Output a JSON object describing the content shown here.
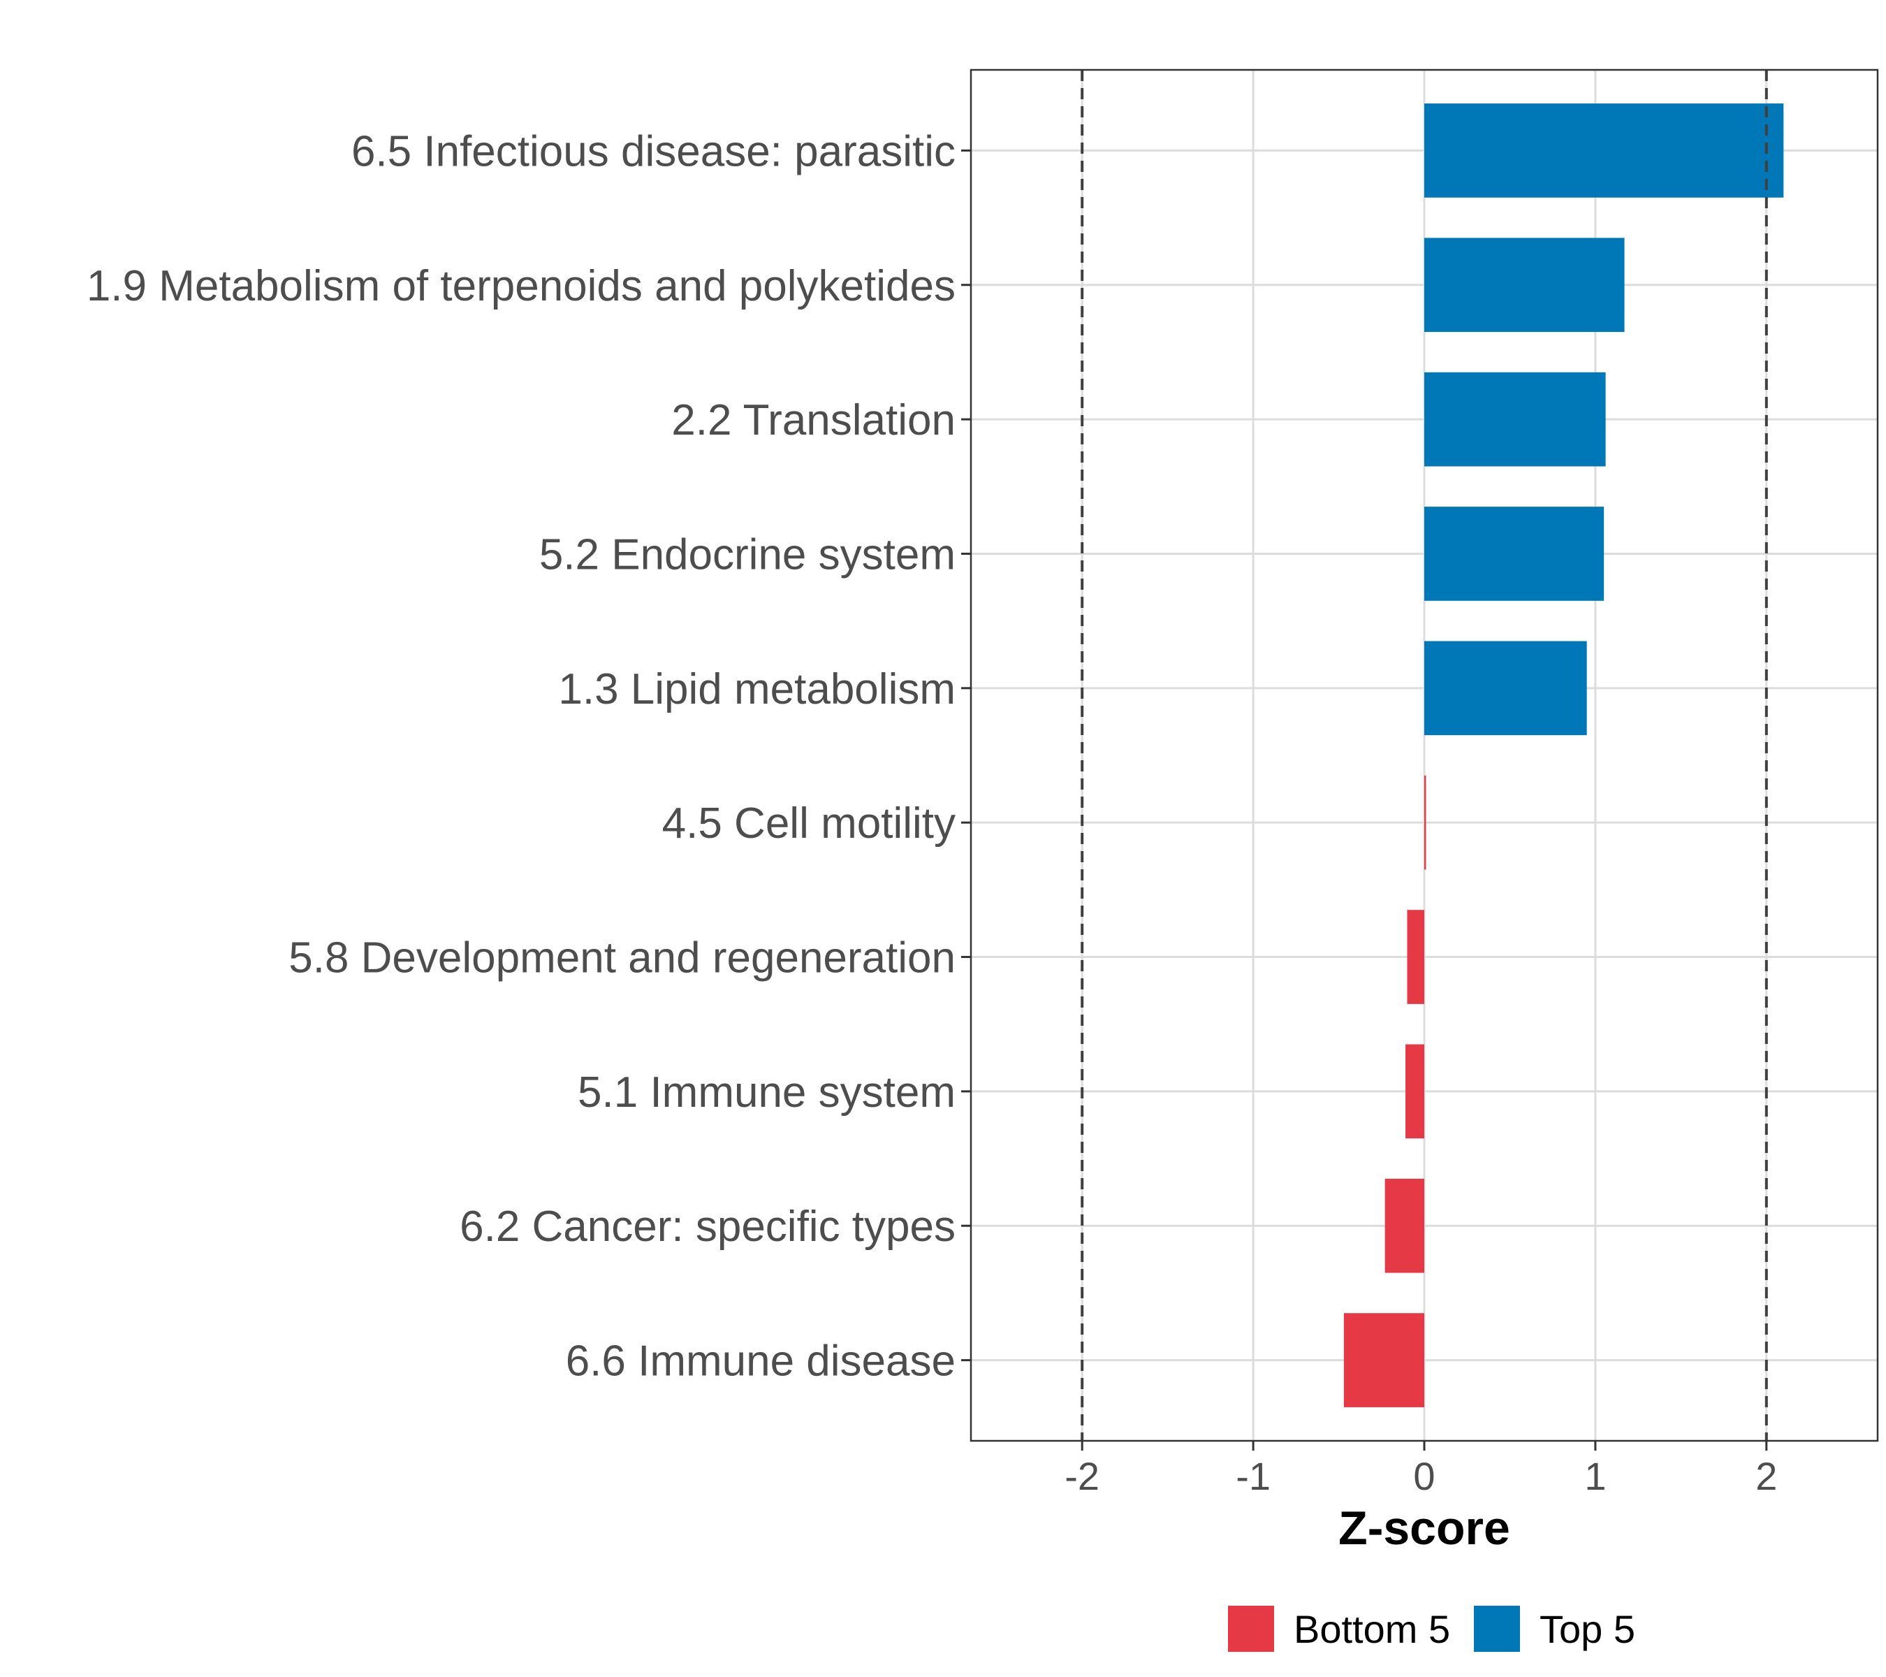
{
  "chart_data": {
    "type": "bar",
    "orientation": "horizontal",
    "title": "",
    "xlabel": "Z-score",
    "ylabel": "",
    "xlim": [
      -2.65,
      2.65
    ],
    "xticks": [
      -2,
      -1,
      0,
      1,
      2
    ],
    "xtick_labels": [
      "-2",
      "-1",
      "0",
      "1",
      "2"
    ],
    "reference_lines": [
      -2,
      2
    ],
    "grid": true,
    "categories": [
      "6.5 Infectious disease: parasitic",
      "1.9 Metabolism of terpenoids and polyketides",
      "2.2 Translation",
      "5.2 Endocrine system",
      "1.3 Lipid metabolism",
      "4.5 Cell motility",
      "5.8 Development and regeneration",
      "5.1 Immune system",
      "6.2 Cancer: specific types",
      "6.6 Immune disease"
    ],
    "values": [
      2.1,
      1.17,
      1.06,
      1.05,
      0.95,
      0.01,
      -0.1,
      -0.11,
      -0.23,
      -0.47
    ],
    "groups": [
      "Top 5",
      "Top 5",
      "Top 5",
      "Top 5",
      "Top 5",
      "Bottom 5",
      "Bottom 5",
      "Bottom 5",
      "Bottom 5",
      "Bottom 5"
    ],
    "legend": {
      "position": "bottom",
      "entries": [
        {
          "label": "Bottom 5",
          "color": "#E63946"
        },
        {
          "label": "Top 5",
          "color": "#0077B6"
        }
      ]
    }
  }
}
